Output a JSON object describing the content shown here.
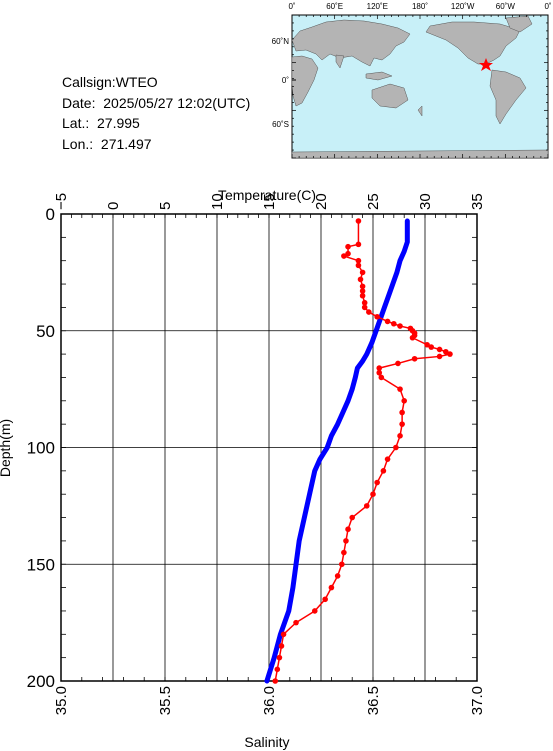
{
  "info": {
    "callsign": "Callsign:WTEO",
    "date": "Date:  2025/05/27 12:02(UTC)",
    "lat": "Lat.:  27.995",
    "lon": "Lon.:  271.497"
  },
  "map": {
    "top_labels": [
      "0˚",
      "60˚E",
      "120˚E",
      "180˚",
      "120˚W",
      "60˚W",
      "0˚"
    ],
    "left_labels": [
      "60˚N",
      "0˚",
      "60˚S"
    ],
    "ocean_color": "#c8f0f8",
    "land_color": "#b4b4b4",
    "marker_color": "#ff0000"
  },
  "chart_data": {
    "type": "line",
    "top_axis_label": "Temperature(C)",
    "bottom_axis_label": "Salinity",
    "left_axis_label": "Depth(m)",
    "temperature_ticks": [
      "−5",
      "0",
      "5",
      "10",
      "15",
      "20",
      "25",
      "30",
      "35"
    ],
    "salinity_ticks": [
      "35.0",
      "35.5",
      "36.0",
      "36.5",
      "37.0"
    ],
    "depth_ticks": [
      "0",
      "50",
      "100",
      "150",
      "200"
    ],
    "temperature_range": [
      -5,
      35
    ],
    "salinity_range": [
      35.0,
      37.0
    ],
    "depth_range": [
      0,
      200
    ],
    "grid": true,
    "series": [
      {
        "axis": "temperature",
        "color": "#0000ff",
        "depth": [
          3,
          12,
          16,
          20,
          25,
          30,
          35,
          40,
          45,
          50,
          55,
          60,
          63,
          66,
          70,
          75,
          80,
          85,
          90,
          95,
          100,
          105,
          110,
          120,
          130,
          140,
          150,
          160,
          170,
          180,
          190,
          200
        ],
        "values": [
          28.3,
          28.3,
          28.0,
          27.6,
          27.3,
          26.9,
          26.5,
          26.1,
          25.7,
          25.3,
          24.9,
          24.4,
          24.0,
          23.5,
          23.3,
          23.0,
          22.6,
          22.1,
          21.6,
          21.0,
          20.6,
          19.9,
          19.4,
          18.9,
          18.4,
          17.9,
          17.6,
          17.3,
          16.9,
          16.1,
          15.5,
          14.8
        ]
      },
      {
        "axis": "salinity",
        "color": "#ff0000",
        "depth": [
          3,
          13,
          14,
          17,
          18,
          20,
          22,
          25,
          28,
          31,
          33,
          35,
          38,
          40,
          42,
          44,
          46,
          47,
          48,
          49,
          50,
          51,
          52,
          53,
          56,
          57,
          58,
          59,
          60,
          61,
          62,
          64,
          66,
          68,
          70,
          75,
          80,
          85,
          90,
          95,
          100,
          105,
          110,
          115,
          120,
          125,
          130,
          135,
          140,
          145,
          150,
          155,
          160,
          165,
          170,
          175,
          180,
          185,
          190,
          195,
          200
        ],
        "values": [
          36.43,
          36.43,
          36.38,
          36.38,
          36.36,
          36.43,
          36.43,
          36.45,
          36.44,
          36.45,
          36.45,
          36.45,
          36.46,
          36.46,
          36.48,
          36.52,
          36.57,
          36.6,
          36.63,
          36.68,
          36.69,
          36.7,
          36.7,
          36.69,
          36.76,
          36.78,
          36.82,
          36.85,
          36.87,
          36.82,
          36.7,
          36.62,
          36.53,
          36.53,
          36.54,
          36.63,
          36.65,
          36.64,
          36.64,
          36.63,
          36.61,
          36.57,
          36.55,
          36.52,
          36.5,
          36.47,
          36.4,
          36.38,
          36.37,
          36.36,
          36.35,
          36.33,
          36.3,
          36.27,
          36.22,
          36.13,
          36.07,
          36.06,
          36.05,
          36.04,
          36.03
        ]
      }
    ]
  }
}
